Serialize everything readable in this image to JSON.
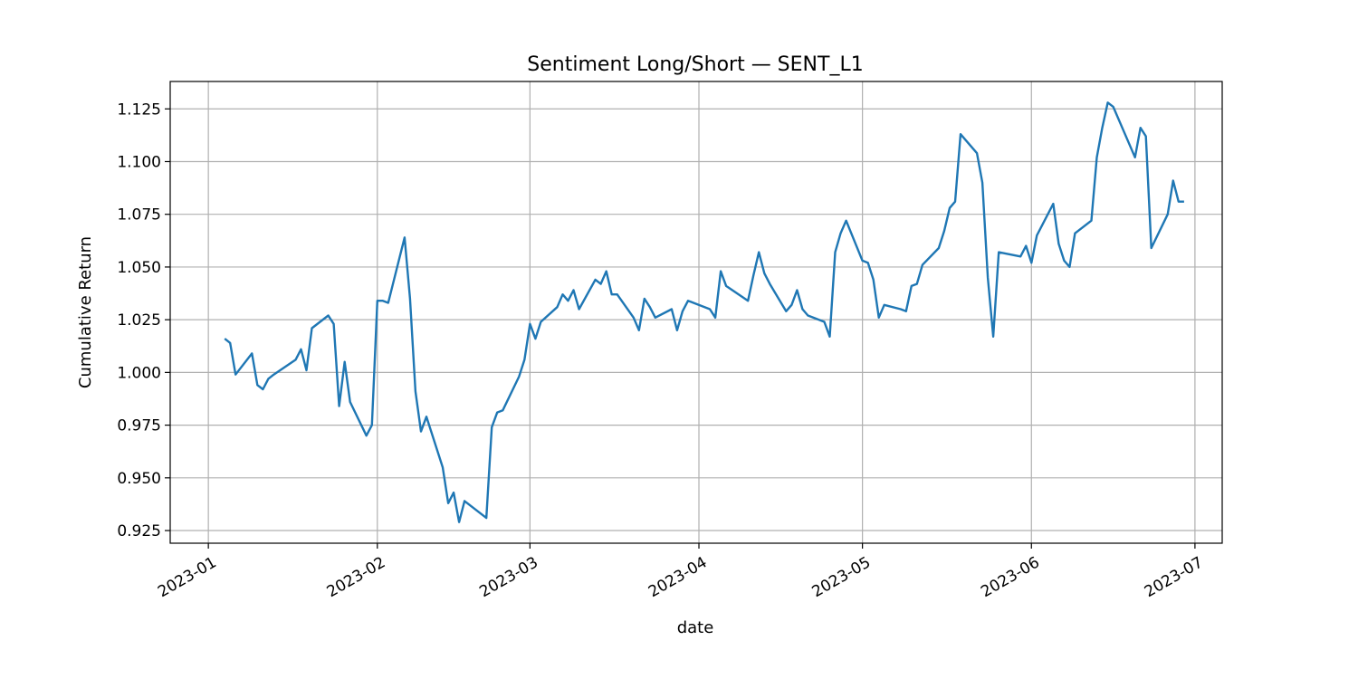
{
  "chart_data": {
    "type": "line",
    "title": "Sentiment Long/Short — SENT_L1",
    "xlabel": "date",
    "ylabel": "Cumulative Return",
    "xlim": [
      "2022-12-25",
      "2023-07-06"
    ],
    "ylim": [
      0.919,
      1.138
    ],
    "grid": true,
    "line_color": "#1f77b4",
    "x_ticks": [
      "2023-01-01",
      "2023-02-01",
      "2023-03-01",
      "2023-04-01",
      "2023-05-01",
      "2023-06-01",
      "2023-07-01"
    ],
    "x_tick_labels": [
      "2023-01",
      "2023-02",
      "2023-03",
      "2023-04",
      "2023-05",
      "2023-06",
      "2023-07"
    ],
    "y_ticks": [
      0.925,
      0.95,
      0.975,
      1.0,
      1.025,
      1.05,
      1.075,
      1.1,
      1.125
    ],
    "y_tick_labels": [
      "0.925",
      "0.950",
      "0.975",
      "1.000",
      "1.025",
      "1.050",
      "1.075",
      "1.100",
      "1.125"
    ],
    "series": [
      {
        "x": [
          "2023-01-04",
          "2023-01-05",
          "2023-01-06",
          "2023-01-09",
          "2023-01-10",
          "2023-01-11",
          "2023-01-12",
          "2023-01-13",
          "2023-01-17",
          "2023-01-18",
          "2023-01-19",
          "2023-01-20",
          "2023-01-23",
          "2023-01-24",
          "2023-01-25",
          "2023-01-26",
          "2023-01-27",
          "2023-01-30",
          "2023-01-31",
          "2023-02-01",
          "2023-02-02",
          "2023-02-03",
          "2023-02-06",
          "2023-02-07",
          "2023-02-08",
          "2023-02-09",
          "2023-02-10",
          "2023-02-13",
          "2023-02-14",
          "2023-02-15",
          "2023-02-16",
          "2023-02-17",
          "2023-02-21",
          "2023-02-22",
          "2023-02-23",
          "2023-02-24",
          "2023-02-27",
          "2023-02-28",
          "2023-03-01",
          "2023-03-02",
          "2023-03-03",
          "2023-03-06",
          "2023-03-07",
          "2023-03-08",
          "2023-03-09",
          "2023-03-10",
          "2023-03-13",
          "2023-03-14",
          "2023-03-15",
          "2023-03-16",
          "2023-03-17",
          "2023-03-20",
          "2023-03-21",
          "2023-03-22",
          "2023-03-23",
          "2023-03-24",
          "2023-03-27",
          "2023-03-28",
          "2023-03-29",
          "2023-03-30",
          "2023-03-31",
          "2023-04-03",
          "2023-04-04",
          "2023-04-05",
          "2023-04-06",
          "2023-04-10",
          "2023-04-11",
          "2023-04-12",
          "2023-04-13",
          "2023-04-14",
          "2023-04-17",
          "2023-04-18",
          "2023-04-19",
          "2023-04-20",
          "2023-04-21",
          "2023-04-24",
          "2023-04-25",
          "2023-04-26",
          "2023-04-27",
          "2023-04-28",
          "2023-05-01",
          "2023-05-02",
          "2023-05-03",
          "2023-05-04",
          "2023-05-05",
          "2023-05-08",
          "2023-05-09",
          "2023-05-10",
          "2023-05-11",
          "2023-05-12",
          "2023-05-15",
          "2023-05-16",
          "2023-05-17",
          "2023-05-18",
          "2023-05-19",
          "2023-05-22",
          "2023-05-23",
          "2023-05-24",
          "2023-05-25",
          "2023-05-26",
          "2023-05-30",
          "2023-05-31",
          "2023-06-01",
          "2023-06-02",
          "2023-06-05",
          "2023-06-06",
          "2023-06-07",
          "2023-06-08",
          "2023-06-09",
          "2023-06-12",
          "2023-06-13",
          "2023-06-14",
          "2023-06-15",
          "2023-06-16",
          "2023-06-20",
          "2023-06-21",
          "2023-06-22",
          "2023-06-23",
          "2023-06-26",
          "2023-06-27",
          "2023-06-28",
          "2023-06-29"
        ],
        "y": [
          1.016,
          1.014,
          0.999,
          1.009,
          0.994,
          0.992,
          0.997,
          0.999,
          1.006,
          1.011,
          1.001,
          1.021,
          1.027,
          1.023,
          0.984,
          1.005,
          0.986,
          0.97,
          0.975,
          1.034,
          1.034,
          1.033,
          1.064,
          1.035,
          0.991,
          0.972,
          0.979,
          0.955,
          0.938,
          0.943,
          0.929,
          0.939,
          0.931,
          0.974,
          0.981,
          0.982,
          0.998,
          1.006,
          1.023,
          1.016,
          1.024,
          1.031,
          1.037,
          1.034,
          1.039,
          1.03,
          1.044,
          1.042,
          1.048,
          1.037,
          1.037,
          1.026,
          1.02,
          1.035,
          1.031,
          1.026,
          1.03,
          1.02,
          1.029,
          1.034,
          1.033,
          1.03,
          1.026,
          1.048,
          1.041,
          1.034,
          1.046,
          1.057,
          1.047,
          1.042,
          1.029,
          1.032,
          1.039,
          1.03,
          1.027,
          1.024,
          1.017,
          1.057,
          1.066,
          1.072,
          1.053,
          1.052,
          1.044,
          1.026,
          1.032,
          1.03,
          1.029,
          1.041,
          1.042,
          1.051,
          1.059,
          1.067,
          1.078,
          1.081,
          1.113,
          1.104,
          1.09,
          1.045,
          1.017,
          1.057,
          1.055,
          1.06,
          1.052,
          1.065,
          1.08,
          1.061,
          1.053,
          1.05,
          1.066,
          1.072,
          1.102,
          1.116,
          1.128,
          1.126,
          1.102,
          1.116,
          1.112,
          1.059,
          1.075,
          1.091,
          1.081,
          1.081
        ]
      }
    ]
  }
}
